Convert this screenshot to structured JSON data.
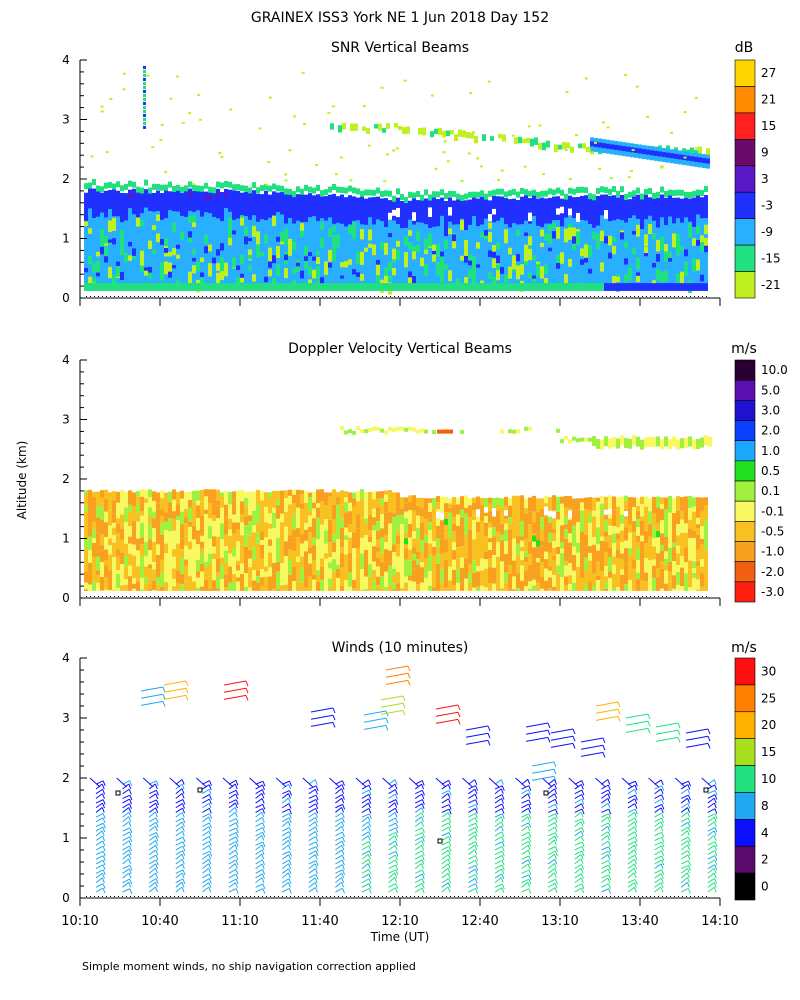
{
  "figure": {
    "title": "GRAINEX ISS3 York NE   1 Jun 2018 Day 152",
    "ylabel": "Altitude (km)",
    "xlabel": "Time (UT)",
    "footnote": "Simple moment winds, no ship navigation correction applied",
    "time_ticks": [
      "10:10",
      "10:40",
      "11:10",
      "11:40",
      "12:10",
      "12:40",
      "13:10",
      "13:40",
      "14:10"
    ]
  },
  "chart_data": [
    {
      "type": "heatmap",
      "title": "SNR Vertical Beams",
      "units": "dB",
      "xlim": [
        "10:10",
        "14:10"
      ],
      "ylim": [
        0,
        4
      ],
      "yticks": [
        "0",
        "1",
        "2",
        "3",
        "4"
      ],
      "colorbar": {
        "labels": [
          "27",
          "21",
          "15",
          "9",
          "3",
          "-3",
          "-9",
          "-15",
          "-21"
        ],
        "colors": [
          "#ffd700",
          "#ff8c00",
          "#ff2020",
          "#6a0a6a",
          "#5a18c8",
          "#2030ff",
          "#28b0ff",
          "#20e080",
          "#c0f020"
        ]
      },
      "layers": [
        {
          "name": "dense-echo-top-km",
          "times": [
            "10:10",
            "11:10",
            "12:10",
            "13:10",
            "14:10"
          ],
          "values": [
            1.8,
            1.8,
            1.65,
            1.7,
            1.7
          ]
        },
        {
          "name": "elevated-layer-km",
          "times": [
            "12:10",
            "13:10",
            "14:10"
          ],
          "values": [
            2.9,
            2.6,
            2.5
          ]
        }
      ]
    },
    {
      "type": "heatmap",
      "title": "Doppler Velocity Vertical Beams",
      "units": "m/s",
      "xlim": [
        "10:10",
        "14:10"
      ],
      "ylim": [
        0,
        4
      ],
      "yticks": [
        "0",
        "1",
        "2",
        "3",
        "4"
      ],
      "colorbar": {
        "labels": [
          "10.0",
          "5.0",
          "3.0",
          "2.0",
          "1.0",
          "0.5",
          "0.1",
          "-0.1",
          "-0.5",
          "-1.0",
          "-2.0",
          "-3.0"
        ],
        "colors": [
          "#2a0030",
          "#5a10b0",
          "#2010d0",
          "#0a40ff",
          "#1aa8ff",
          "#20e020",
          "#a0f040",
          "#f8f860",
          "#f8c020",
          "#f8a020",
          "#f06010",
          "#ff2010"
        ]
      }
    },
    {
      "type": "barbs",
      "title": "Winds (10 minutes)",
      "units": "m/s",
      "xlim": [
        "10:10",
        "14:10"
      ],
      "ylim": [
        0,
        4
      ],
      "yticks": [
        "0",
        "1",
        "2",
        "3",
        "4"
      ],
      "colorbar": {
        "labels": [
          "30",
          "25",
          "20",
          "15",
          "10",
          "8",
          "4",
          "2",
          "0"
        ],
        "colors": [
          "#ff1010",
          "#ff8000",
          "#ffb000",
          "#a8e020",
          "#20e080",
          "#20a8f0",
          "#0a10ff",
          "#5a0a6a",
          "#000000"
        ]
      }
    }
  ]
}
